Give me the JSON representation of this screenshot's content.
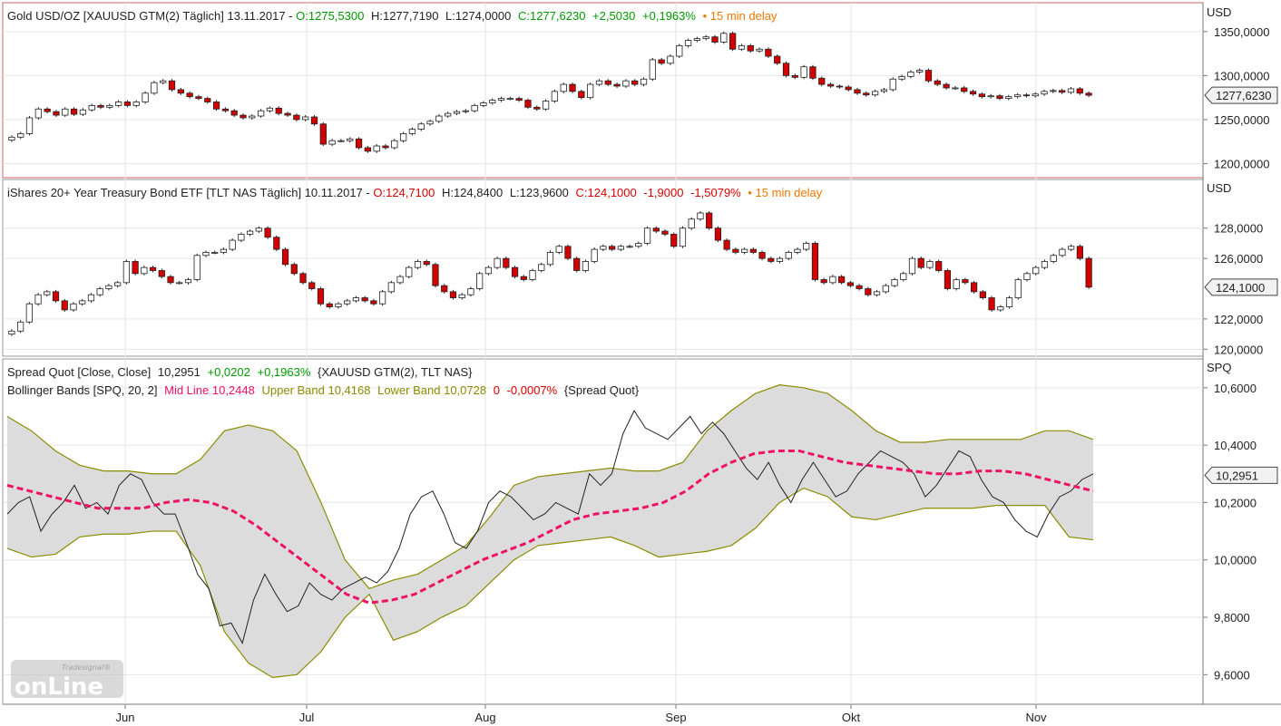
{
  "colors": {
    "up": "#ffffff",
    "down": "#d40000",
    "wick": "#222222",
    "green": "#009900",
    "red": "#dd0000",
    "orange": "#ee7700",
    "mid": "#ee1166",
    "band": "#8c8c00",
    "fill": "#dcdcdc",
    "grid": "#e6e6e6"
  },
  "xaxis": {
    "labels": [
      "Jun",
      "Jul",
      "Aug",
      "Sep",
      "Okt",
      "Nov"
    ]
  },
  "chart_data": [
    {
      "type": "candlestick",
      "title": "Gold USD/OZ [XAUUSD GTM(2) Täglich] 13.11.2017",
      "header": {
        "o": "O:1275,5300",
        "h": "H:1277,7190",
        "l": "L:1274,0000",
        "c": "C:1277,6230",
        "chg": "+2,5030",
        "pct": "+0,1963%",
        "delay": "• 15 min delay"
      },
      "unit": "USD",
      "ylim": [
        1185,
        1355
      ],
      "ticks": [
        "1350,0000",
        "1300,0000",
        "1250,0000",
        "1200,0000"
      ],
      "tick_values": [
        1350,
        1300,
        1250,
        1200
      ],
      "last_label": "1277,6230",
      "last_value": 1277.623,
      "closes": [
        1230,
        1234,
        1252,
        1262,
        1259,
        1255,
        1262,
        1256,
        1261,
        1266,
        1264,
        1266,
        1270,
        1266,
        1270,
        1280,
        1292,
        1294,
        1284,
        1280,
        1276,
        1274,
        1270,
        1262,
        1260,
        1255,
        1252,
        1254,
        1260,
        1263,
        1257,
        1255,
        1250,
        1253,
        1245,
        1222,
        1226,
        1226,
        1228,
        1218,
        1214,
        1220,
        1218,
        1226,
        1234,
        1239,
        1245,
        1248,
        1254,
        1257,
        1259,
        1260,
        1266,
        1269,
        1272,
        1274,
        1274,
        1272,
        1264,
        1262,
        1271,
        1282,
        1290,
        1282,
        1275,
        1290,
        1294,
        1290,
        1288,
        1294,
        1290,
        1296,
        1318,
        1314,
        1322,
        1334,
        1340,
        1342,
        1344,
        1338,
        1348,
        1330,
        1334,
        1328,
        1330,
        1322,
        1314,
        1300,
        1298,
        1310,
        1297,
        1290,
        1288,
        1287,
        1284,
        1280,
        1278,
        1282,
        1284,
        1296,
        1299,
        1304,
        1306,
        1294,
        1290,
        1286,
        1286,
        1282,
        1279,
        1276,
        1277,
        1274,
        1276,
        1278,
        1277,
        1279,
        1282,
        1283,
        1281,
        1285,
        1280,
        1277.6
      ]
    },
    {
      "type": "candlestick",
      "title": "iShares 20+ Year Treasury Bond ETF [TLT NAS Täglich] 10.11.2017",
      "header": {
        "o": "O:124,7100",
        "h": "H:124,8400",
        "l": "L:123,9600",
        "c": "C:124,1000",
        "chg": "-1,9000",
        "pct": "-1,5079%",
        "delay": "• 15 min delay"
      },
      "unit": "USD",
      "ylim": [
        119.6,
        129.6
      ],
      "ticks": [
        "128,0000",
        "126,0000",
        "124,1000",
        "122,0000",
        "120,0000"
      ],
      "tick_values": [
        128,
        126,
        124.1,
        122,
        120
      ],
      "last_label": "124,1000",
      "last_value": 124.1,
      "closes": [
        121.2,
        121.8,
        123.0,
        123.6,
        123.8,
        123.2,
        122.6,
        123.0,
        123.2,
        123.6,
        124.0,
        124.2,
        124.4,
        125.8,
        125.0,
        125.4,
        125.2,
        124.8,
        124.4,
        124.4,
        124.6,
        126.2,
        126.4,
        126.4,
        126.6,
        127.2,
        127.6,
        127.8,
        128.0,
        127.4,
        126.6,
        125.6,
        125.0,
        124.4,
        124.0,
        123.0,
        122.8,
        123.0,
        123.2,
        123.4,
        123.2,
        123.0,
        123.8,
        124.4,
        124.8,
        125.4,
        125.8,
        125.6,
        124.2,
        123.8,
        123.4,
        123.6,
        124.0,
        125.0,
        125.4,
        126.0,
        125.4,
        124.8,
        124.6,
        125.2,
        125.6,
        126.4,
        126.8,
        126.0,
        125.2,
        125.8,
        126.6,
        126.8,
        126.6,
        126.8,
        126.8,
        127.0,
        128.0,
        127.8,
        127.6,
        126.8,
        128.0,
        128.6,
        129.0,
        128.0,
        127.2,
        126.6,
        126.4,
        126.6,
        126.4,
        126.0,
        125.8,
        126.0,
        126.4,
        126.6,
        127.0,
        124.6,
        124.4,
        124.8,
        124.4,
        124.2,
        124.0,
        123.6,
        123.8,
        124.2,
        124.6,
        125.0,
        126.0,
        125.4,
        125.8,
        125.2,
        124.0,
        124.6,
        124.4,
        123.8,
        123.4,
        122.6,
        122.8,
        123.4,
        124.6,
        125.0,
        125.4,
        125.8,
        126.2,
        126.6,
        126.8,
        126.0,
        124.1
      ]
    },
    {
      "type": "line+bands",
      "title": "Spread Quot [Close, Close]",
      "header": {
        "value": "10,2951",
        "chg": "+0,0202",
        "pct": "+0,1963%",
        "sym": "{XAUUSD GTM(2), TLT NAS}"
      },
      "bb": {
        "name": "Bollinger Bands [SPQ, 20, 2]",
        "mid": "Mid Line 10,2448",
        "upper": "Upper Band 10,4168",
        "lower": "Lower Band 10,0728",
        "zero": "0",
        "pct": "-0,0007%",
        "sym": "{Spread Quot}"
      },
      "unit": "SPQ",
      "ylim": [
        9.5,
        10.65
      ],
      "ticks": [
        "10,6000",
        "10,4000",
        "10,2000",
        "10,0000",
        "9,8000",
        "9,6000"
      ],
      "tick_values": [
        10.6,
        10.4,
        10.2,
        10.0,
        9.8,
        9.6
      ],
      "last_label": "10,2951",
      "last_value": 10.2951,
      "price": [
        10.16,
        10.2,
        10.22,
        10.1,
        10.16,
        10.2,
        10.26,
        10.18,
        10.2,
        10.16,
        10.26,
        10.3,
        10.28,
        10.2,
        10.16,
        10.16,
        10.06,
        9.95,
        9.9,
        9.77,
        9.78,
        9.71,
        9.86,
        9.95,
        9.88,
        9.82,
        9.84,
        9.92,
        9.88,
        9.86,
        9.9,
        9.92,
        9.94,
        9.92,
        9.96,
        10.04,
        10.16,
        10.22,
        10.24,
        10.16,
        10.06,
        10.04,
        10.1,
        10.2,
        10.24,
        10.22,
        10.18,
        10.14,
        10.16,
        10.2,
        10.18,
        10.16,
        10.3,
        10.26,
        10.3,
        10.44,
        10.52,
        10.46,
        10.44,
        10.42,
        10.46,
        10.5,
        10.44,
        10.48,
        10.44,
        10.38,
        10.32,
        10.28,
        10.34,
        10.26,
        10.2,
        10.28,
        10.34,
        10.28,
        10.22,
        10.24,
        10.3,
        10.34,
        10.38,
        10.36,
        10.34,
        10.3,
        10.22,
        10.26,
        10.32,
        10.38,
        10.36,
        10.28,
        10.22,
        10.2,
        10.14,
        10.1,
        10.08,
        10.16,
        10.22,
        10.24,
        10.28,
        10.3
      ],
      "mid_line": [
        10.26,
        10.24,
        10.22,
        10.2,
        10.18,
        10.18,
        10.18,
        10.2,
        10.21,
        10.2,
        10.17,
        10.12,
        10.06,
        10.0,
        9.94,
        9.88,
        9.85,
        9.86,
        9.88,
        9.92,
        9.96,
        10.0,
        10.03,
        10.06,
        10.1,
        10.14,
        10.16,
        10.17,
        10.18,
        10.2,
        10.24,
        10.3,
        10.34,
        10.37,
        10.38,
        10.38,
        10.36,
        10.34,
        10.33,
        10.32,
        10.31,
        10.3,
        10.3,
        10.31,
        10.31,
        10.3,
        10.28,
        10.26,
        10.24
      ],
      "upper": [
        10.5,
        10.45,
        10.38,
        10.33,
        10.31,
        10.31,
        10.3,
        10.3,
        10.35,
        10.45,
        10.47,
        10.45,
        10.38,
        10.2,
        10.0,
        9.9,
        9.93,
        9.95,
        10.0,
        10.05,
        10.15,
        10.26,
        10.29,
        10.3,
        10.31,
        10.32,
        10.31,
        10.31,
        10.34,
        10.45,
        10.52,
        10.58,
        10.61,
        10.6,
        10.58,
        10.52,
        10.45,
        10.41,
        10.41,
        10.42,
        10.42,
        10.42,
        10.42,
        10.45,
        10.45,
        10.42
      ],
      "lower": [
        10.04,
        10.01,
        10.02,
        10.08,
        10.09,
        10.09,
        10.1,
        10.1,
        9.98,
        9.75,
        9.64,
        9.59,
        9.6,
        9.68,
        9.8,
        9.88,
        9.72,
        9.75,
        9.8,
        9.84,
        9.92,
        10.0,
        10.05,
        10.06,
        10.07,
        10.08,
        10.05,
        10.01,
        10.02,
        10.03,
        10.05,
        10.11,
        10.2,
        10.25,
        10.22,
        10.15,
        10.14,
        10.16,
        10.18,
        10.18,
        10.18,
        10.19,
        10.19,
        10.19,
        10.08,
        10.07
      ]
    }
  ],
  "watermark": {
    "small": "Tradesignal®",
    "big": "onLine"
  }
}
